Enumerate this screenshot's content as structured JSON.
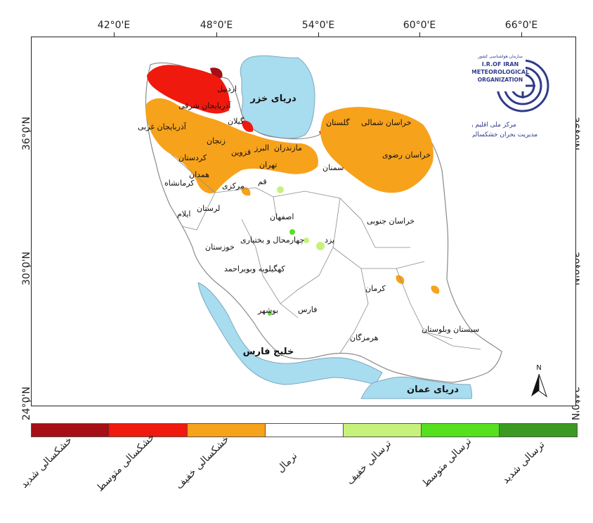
{
  "axes": {
    "top_ticks": [
      "42°0'E",
      "48°0'E",
      "54°0'E",
      "60°0'E",
      "66°0'E"
    ],
    "left_ticks": [
      "36°0'N",
      "30°0'N",
      "24°0'N"
    ],
    "right_ticks": [
      "36°0'N",
      "30°0'N",
      "24°0'N"
    ]
  },
  "seas": {
    "caspian": "دریای خزر",
    "persian_gulf": "خلیج فارس",
    "oman_sea": "دریای عمان"
  },
  "provinces": {
    "ardabil": "اردبیل",
    "east_azarbaijan": "آذربایجان شرقی",
    "west_azarbaijan": "آذربایجان غربی",
    "gilan": "گیلان",
    "zanjan": "زنجان",
    "qazvin": "قزوین",
    "mazandaran": "مازندران",
    "alborz": "البرز",
    "tehran": "تهران",
    "golestan": "گلستان",
    "north_khorasan": "خراسان شمالی",
    "razavi_khorasan": "خراسان رضوی",
    "semnan": "سمنان",
    "kurdistan": "کردستان",
    "hamadan": "همدان",
    "kermanshah": "کرمانشاه",
    "markazi": "مرکزی",
    "qom": "قم",
    "lorestan": "لرستان",
    "ilam": "ایلام",
    "isfahan": "اصفهان",
    "south_khorasan": "خراسان جنوبی",
    "chaharmahal": "چهارمحال و بختیاری",
    "yazd": "یزد",
    "khuzestan": "خوزستان",
    "kohgiluyeh": "کهگیلویه وبویراحمد",
    "kerman": "کرمان",
    "bushehr": "بوشهر",
    "fars": "فارس",
    "hormozgan": "هرمزگان",
    "sistan": "سیستان وبلوستان"
  },
  "logo": {
    "line1": "سازمان هواشناسی کشور",
    "line2": "I.R.OF IRAN",
    "line3": "METEOROLOGICAL",
    "line4": "ORGANIZATION",
    "caption1": "مرکز ملی اقلیم و",
    "caption2": "مدیریت بحران خشکسالی"
  },
  "north_label": "N",
  "legend": [
    {
      "label": "خشکسالی شدید",
      "color": "#a50f15"
    },
    {
      "label": "خشکسالی متوسط",
      "color": "#f0190e"
    },
    {
      "label": "خشکسالی خفیف",
      "color": "#f7a21b"
    },
    {
      "label": "نرمال",
      "color": "#ffffff"
    },
    {
      "label": "ترسالی خفیف",
      "color": "#c6f27c"
    },
    {
      "label": "ترسالی متوسط",
      "color": "#56e11e"
    },
    {
      "label": "ترسالی شدید",
      "color": "#3a9a22"
    }
  ],
  "colors": {
    "sea": "#a8dcef",
    "border": "#8a8a8a"
  }
}
